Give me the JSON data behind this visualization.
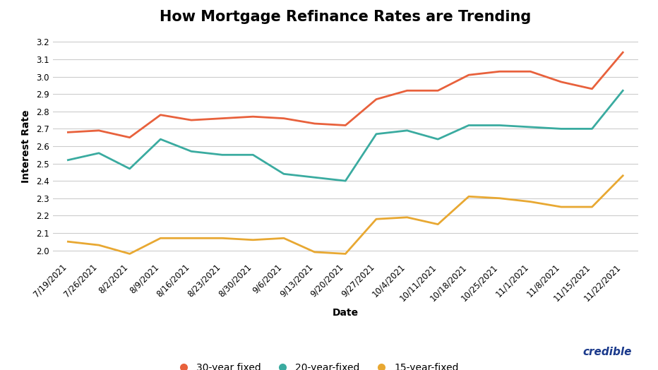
{
  "title": "How Mortgage Refinance Rates are Trending",
  "xlabel": "Date",
  "ylabel": "Interest Rate",
  "ylim": [
    1.95,
    3.25
  ],
  "yticks": [
    2.0,
    2.1,
    2.2,
    2.3,
    2.4,
    2.5,
    2.6,
    2.7,
    2.8,
    2.9,
    3.0,
    3.1,
    3.2
  ],
  "dates": [
    "7/19/2021",
    "7/26/2021",
    "8/2/2021",
    "8/9/2021",
    "8/16/2021",
    "8/23/2021",
    "8/30/2021",
    "9/6/2021",
    "9/13/2021",
    "9/20/2021",
    "9/27/2021",
    "10/4/2021",
    "10/11/2021",
    "10/18/2021",
    "10/25/2021",
    "11/1/2021",
    "11/8/2021",
    "11/15/2021",
    "11/22/2021"
  ],
  "y_30yr": [
    2.68,
    2.69,
    2.65,
    2.78,
    2.75,
    2.76,
    2.77,
    2.76,
    2.73,
    2.72,
    2.87,
    2.92,
    2.92,
    3.01,
    3.03,
    3.03,
    2.97,
    2.93,
    3.14
  ],
  "y_20yr": [
    2.52,
    2.56,
    2.47,
    2.64,
    2.57,
    2.55,
    2.55,
    2.44,
    2.42,
    2.4,
    2.67,
    2.69,
    2.64,
    2.72,
    2.72,
    2.71,
    2.7,
    2.7,
    2.92
  ],
  "y_15yr": [
    2.05,
    2.03,
    1.98,
    2.07,
    2.07,
    2.07,
    2.06,
    2.07,
    1.99,
    1.98,
    2.18,
    2.19,
    2.15,
    2.31,
    2.3,
    2.28,
    2.25,
    2.25,
    2.43
  ],
  "color_30yr": "#E8613C",
  "color_20yr": "#3AABA0",
  "color_15yr": "#E8A832",
  "bg_color": "#FFFFFF",
  "grid_color": "#CCCCCC",
  "title_fontsize": 15,
  "label_fontsize": 10,
  "tick_fontsize": 8.5,
  "legend_labels": [
    "30-year fixed",
    "20-year-fixed",
    "15-year-fixed"
  ],
  "credible_color": "#1B3A8C",
  "line_width": 2.0
}
